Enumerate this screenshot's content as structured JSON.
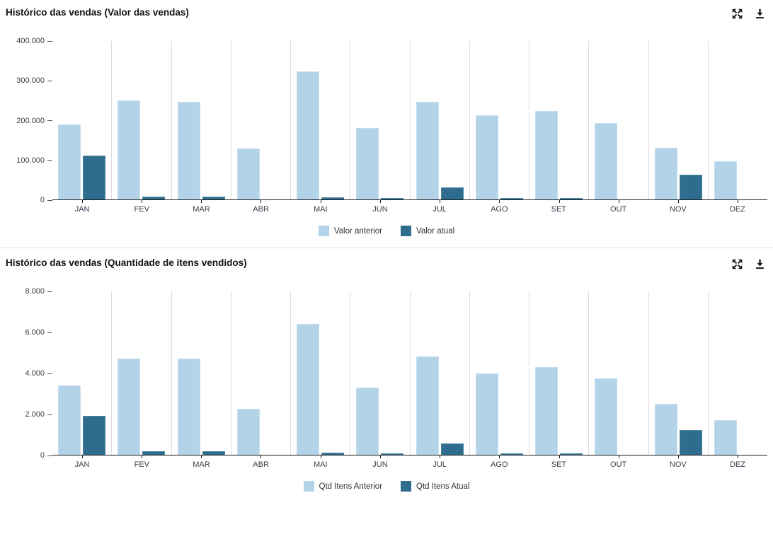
{
  "page": {
    "background": "#ffffff"
  },
  "icons": {
    "expand": "expand-icon",
    "download": "download-icon",
    "icon_color": "#1a1a1a"
  },
  "chart_data": [
    {
      "type": "bar",
      "title": "Histórico das vendas (Valor das vendas)",
      "categories": [
        "JAN",
        "FEV",
        "MAR",
        "ABR",
        "MAI",
        "JUN",
        "JUL",
        "AGO",
        "SET",
        "OUT",
        "NOV",
        "DEZ"
      ],
      "series": [
        {
          "name": "Valor anterior",
          "color": "#b3d3e8",
          "border": "#c6ddee",
          "values": [
            190000,
            250000,
            247000,
            128000,
            323000,
            180000,
            247000,
            212000,
            224000,
            192000,
            130000,
            97000
          ]
        },
        {
          "name": "Valor atual",
          "color": "#2e6d8d",
          "border": "#4d87a3",
          "values": [
            110000,
            8000,
            8000,
            0,
            5000,
            3000,
            30000,
            3000,
            3000,
            0,
            62000,
            0
          ]
        }
      ],
      "ylim": [
        0,
        400000
      ],
      "yticks": [
        {
          "label": "400.000",
          "value": 400000
        },
        {
          "label": "300.000",
          "value": 300000
        },
        {
          "label": "200.000",
          "value": 200000
        },
        {
          "label": "100.000",
          "value": 100000
        },
        {
          "label": "0",
          "value": 0
        }
      ],
      "xlabel": "",
      "ylabel": "",
      "grid": "vertical lines between categories",
      "legend_position": "bottom-center"
    },
    {
      "type": "bar",
      "title": "Histórico das vendas (Quantidade de itens vendidos)",
      "categories": [
        "JAN",
        "FEV",
        "MAR",
        "ABR",
        "MAI",
        "JUN",
        "JUL",
        "AGO",
        "SET",
        "OUT",
        "NOV",
        "DEZ"
      ],
      "series": [
        {
          "name": "Qtd Itens Anterior",
          "color": "#b3d3e8",
          "border": "#c6ddee",
          "values": [
            3400,
            4700,
            4700,
            2250,
            6400,
            3300,
            4800,
            4000,
            4300,
            3750,
            2500,
            1700
          ]
        },
        {
          "name": "Qtd Itens Atual",
          "color": "#2e6d8d",
          "border": "#4d87a3",
          "values": [
            1900,
            170,
            170,
            0,
            100,
            70,
            550,
            70,
            70,
            0,
            1200,
            0
          ]
        }
      ],
      "ylim": [
        0,
        8000
      ],
      "yticks": [
        {
          "label": "8.000",
          "value": 8000
        },
        {
          "label": "6.000",
          "value": 6000
        },
        {
          "label": "4.000",
          "value": 4000
        },
        {
          "label": "2.000",
          "value": 2000
        },
        {
          "label": "0",
          "value": 0
        }
      ],
      "xlabel": "",
      "ylabel": "",
      "grid": "vertical lines between categories",
      "legend_position": "bottom-center"
    }
  ]
}
